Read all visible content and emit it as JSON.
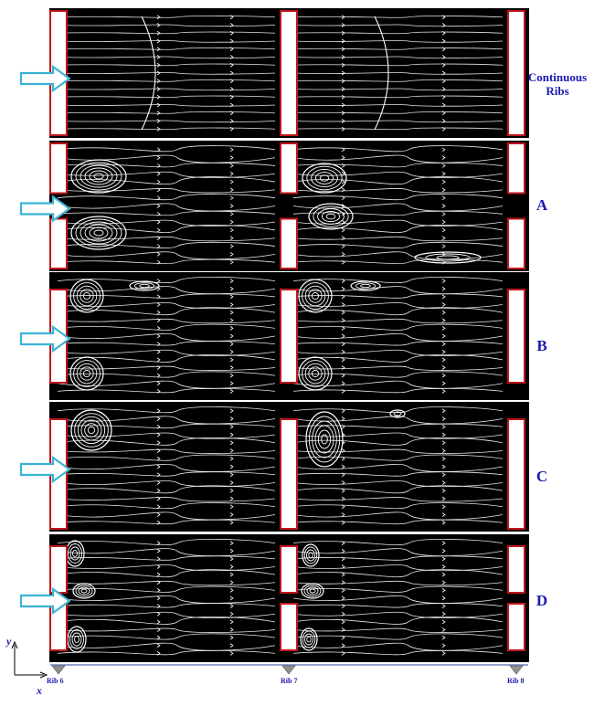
{
  "panels": [
    {
      "id": "continuous",
      "label_line1": "Continuous",
      "label_line2": "Ribs",
      "rib_gaps": "none",
      "arrow_position": "upper-middle"
    },
    {
      "id": "A",
      "label": "A",
      "rib_gaps": "center-gap",
      "arrow_position": "center"
    },
    {
      "id": "B",
      "label": "B",
      "rib_gaps": "top-bottom-gaps",
      "arrow_position": "center"
    },
    {
      "id": "C",
      "label": "C",
      "rib_gaps": "top-gap",
      "arrow_position": "center"
    },
    {
      "id": "D",
      "label": "D",
      "rib_gaps": "top-center-bottom-gaps",
      "arrow_position": "center"
    }
  ],
  "ribs": [
    {
      "label": "Rib 6"
    },
    {
      "label": "Rib 7"
    },
    {
      "label": "Rib 8"
    }
  ],
  "axes": {
    "x_label": "x",
    "y_label": "y"
  },
  "colors": {
    "flow_background": "#000000",
    "streamline": "#ffffff",
    "rib_edge": "#c0161b",
    "inlet_arrow": "#3bb3d6",
    "label_text": "#1a1ab0",
    "rib_marker": "#909090"
  }
}
